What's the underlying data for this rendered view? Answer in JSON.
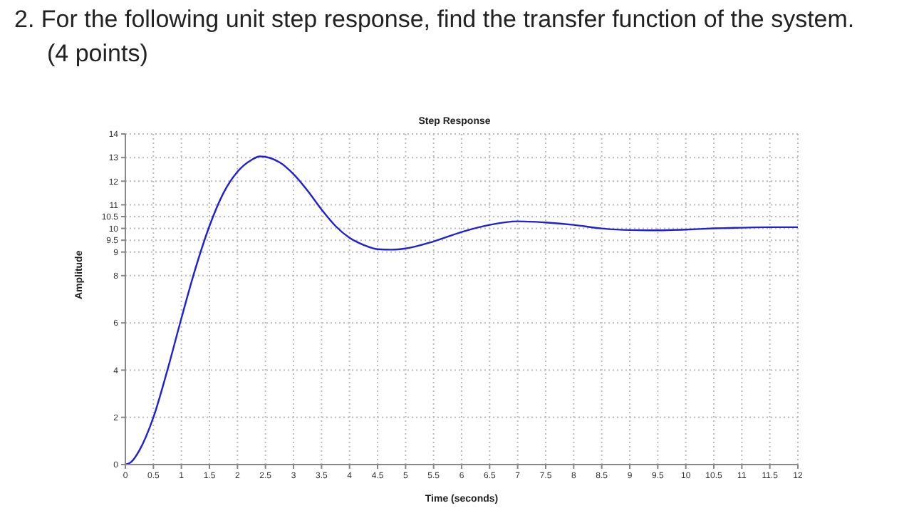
{
  "chart_data": {
    "type": "line",
    "title": "Step Response",
    "xlabel": "Time (seconds)",
    "ylabel": "Amplitude",
    "annotations": [
      "2. For the following unit step response, find the transfer function of the system.",
      "(4 points)"
    ],
    "x": [
      0,
      0.1,
      0.25,
      0.5,
      0.75,
      1,
      1.25,
      1.5,
      1.75,
      2,
      2.25,
      2.4,
      2.75,
      3,
      3.25,
      3.5,
      3.75,
      4,
      4.25,
      4.5,
      4.75,
      5,
      5.5,
      6,
      6.5,
      7,
      7.5,
      8,
      8.5,
      9,
      9.5,
      10,
      10.5,
      11,
      11.5,
      12
    ],
    "series": [
      {
        "color": "#1f1fd6",
        "values": [
          0,
          0.1,
          0.6,
          2.0,
          4.0,
          6.2,
          8.3,
          10.1,
          11.5,
          12.4,
          12.9,
          13.05,
          12.8,
          12.3,
          11.6,
          10.8,
          10.1,
          9.6,
          9.3,
          9.12,
          9.1,
          9.15,
          9.45,
          9.85,
          10.15,
          10.3,
          10.25,
          10.15,
          10.0,
          9.93,
          9.92,
          9.95,
          10.0,
          10.03,
          10.05,
          10.05
        ]
      }
    ],
    "xlim": [
      0,
      12
    ],
    "xticks": [
      0,
      0.5,
      1,
      1.5,
      2,
      2.5,
      3,
      3.5,
      4,
      4.5,
      5,
      5.5,
      6,
      6.5,
      7,
      7.5,
      8,
      8.5,
      9,
      9.5,
      10,
      10.5,
      11,
      11.5,
      12
    ],
    "ylim": [
      0,
      14
    ],
    "yticks": [
      0,
      2,
      4,
      6,
      8,
      9,
      9.5,
      10,
      10.5,
      11,
      12,
      13,
      14
    ],
    "grid": true,
    "legend": false,
    "marker": "none",
    "line_style": "solid"
  }
}
